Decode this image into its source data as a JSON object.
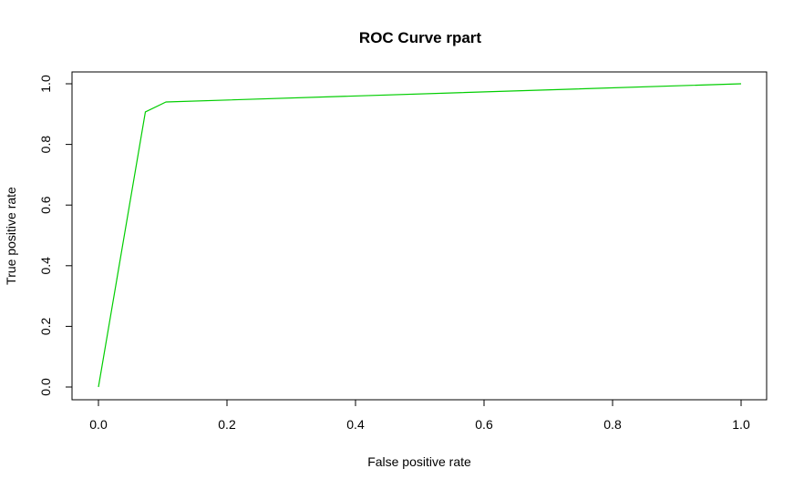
{
  "chart_data": {
    "type": "line",
    "title": "ROC Curve rpart",
    "xlabel": "False positive rate",
    "ylabel": "True positive rate",
    "xlim": [
      0,
      1
    ],
    "ylim": [
      0,
      1
    ],
    "x_ticks": [
      "0.0",
      "0.2",
      "0.4",
      "0.6",
      "0.8",
      "1.0"
    ],
    "y_ticks": [
      "0.0",
      "0.2",
      "0.4",
      "0.6",
      "0.8",
      "1.0"
    ],
    "grid": false,
    "legend": "none",
    "series": [
      {
        "color": "#00cd00",
        "x": [
          0.0,
          0.073,
          0.105,
          1.0
        ],
        "y": [
          0.0,
          0.907,
          0.94,
          1.0
        ]
      }
    ]
  }
}
